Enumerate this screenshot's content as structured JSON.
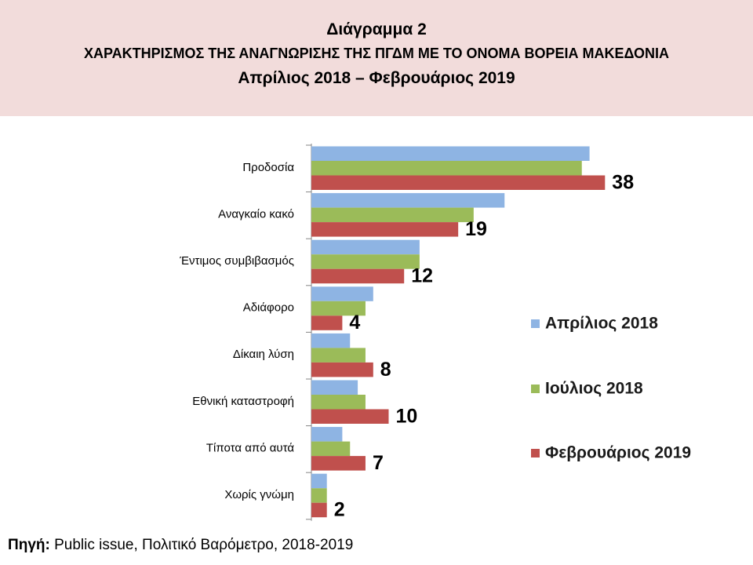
{
  "header": {
    "line1": "Διάγραμμα 2",
    "line2": "ΧΑΡΑΚΤΗΡΙΣΜΟΣ ΤΗΣ ΑΝΑΓΝΩΡΙΣΗΣ ΤΗΣ ΠΓΔΜ ΜΕ ΤΟ ΟΝΟΜΑ ΒΟΡΕΙΑ ΜΑΚΕΔΟΝΙΑ",
    "line3": "Απρίλιος 2018 – Φεβρουάριος 2019"
  },
  "source": {
    "label": "Πηγή:",
    "text": "Public issue, Πολιτικό Βαρόμετρο, 2018-2019"
  },
  "chart_data": {
    "type": "bar",
    "orientation": "horizontal",
    "categories": [
      "Προδοσία",
      "Αναγκαίο κακό",
      "Έντιμος συμβιβασμός",
      "Αδιάφορο",
      "Δίκαιη λύση",
      "Εθνική καταστροφή",
      "Τίποτα από αυτά",
      "Χωρίς γνώμη"
    ],
    "series": [
      {
        "name": "Απρίλιος 2018",
        "color": "#8eb4e3",
        "values": [
          36,
          25,
          14,
          8,
          5,
          6,
          4,
          2
        ],
        "show_labels": false
      },
      {
        "name": "Ιούλιος 2018",
        "color": "#9bbb59",
        "values": [
          35,
          21,
          14,
          7,
          7,
          7,
          5,
          2
        ],
        "show_labels": false
      },
      {
        "name": "Φεβρουάριος 2019",
        "color": "#c0504d",
        "values": [
          38,
          19,
          12,
          4,
          8,
          10,
          7,
          2
        ],
        "show_labels": true
      }
    ],
    "xlim": [
      0,
      40
    ],
    "grid": false,
    "legend_position": "right"
  }
}
